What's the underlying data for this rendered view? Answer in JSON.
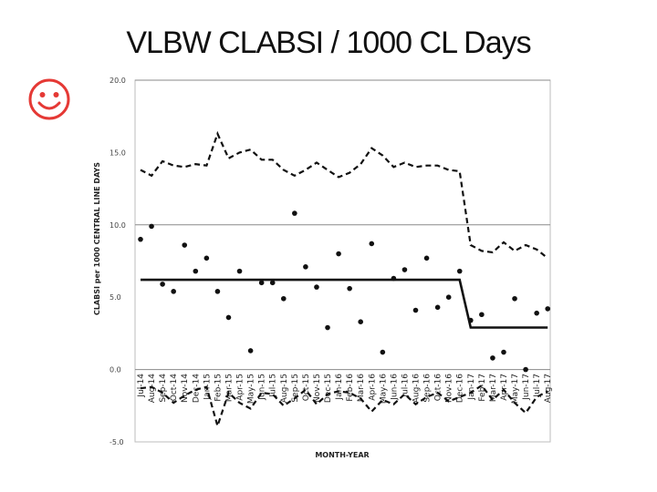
{
  "slide": {
    "title": "VLBW CLABSI / 1000 CL Days",
    "icon": "smiley-face-icon",
    "icon_color": "#e53935"
  },
  "chart_data": {
    "type": "line",
    "ylabel": "CLABSI per 1000 CENTRAL LINE DAYS",
    "xlabel": "MONTH-YEAR",
    "ylim": [
      -5,
      20
    ],
    "yticks": [
      "-5.0",
      "0.0",
      "5.0",
      "10.0",
      "15.0",
      "20.0"
    ],
    "grid": "horizontal at 0, 10 and 20",
    "categories": [
      "Jul-14",
      "Aug-14",
      "Sep-14",
      "Oct-14",
      "Nov-14",
      "Dec-14",
      "Jan-15",
      "Feb-15",
      "Mar-15",
      "Apr-15",
      "May-15",
      "Jun-15",
      "Jul-15",
      "Aug-15",
      "Sep-15",
      "Oct-15",
      "Nov-15",
      "Dec-15",
      "Jan-16",
      "Feb-16",
      "Mar-16",
      "Apr-16",
      "May-16",
      "Jun-16",
      "Jul-16",
      "Aug-16",
      "Sep-16",
      "Oct-16",
      "Nov-16",
      "Dec-16",
      "Jan-17",
      "Feb-17",
      "Mar-17",
      "Apr-17",
      "May-17",
      "Jun-17",
      "Jul-17",
      "Aug-17"
    ],
    "series": [
      {
        "style": "markers",
        "color": "#111111",
        "values": [
          9.0,
          9.9,
          5.9,
          5.4,
          8.6,
          6.8,
          7.7,
          5.4,
          3.6,
          6.8,
          1.3,
          6.0,
          6.0,
          4.9,
          10.8,
          7.1,
          5.7,
          2.9,
          8.0,
          5.6,
          3.3,
          8.7,
          1.2,
          6.3,
          6.9,
          4.1,
          7.7,
          4.3,
          5.0,
          6.8,
          3.4,
          3.8,
          0.8,
          1.2,
          4.9,
          0.0,
          3.9,
          4.2
        ]
      },
      {
        "style": "solid",
        "color": "#111111",
        "values": [
          6.2,
          6.2,
          6.2,
          6.2,
          6.2,
          6.2,
          6.2,
          6.2,
          6.2,
          6.2,
          6.2,
          6.2,
          6.2,
          6.2,
          6.2,
          6.2,
          6.2,
          6.2,
          6.2,
          6.2,
          6.2,
          6.2,
          6.2,
          6.2,
          6.2,
          6.2,
          6.2,
          6.2,
          6.2,
          6.2,
          2.9,
          2.9,
          2.9,
          2.9,
          2.9,
          2.9,
          2.9,
          2.9
        ]
      },
      {
        "style": "dashed",
        "color": "#111111",
        "values": [
          13.8,
          13.4,
          14.4,
          14.1,
          14.0,
          14.2,
          14.1,
          16.3,
          14.6,
          15.0,
          15.2,
          14.5,
          14.5,
          13.8,
          13.4,
          13.8,
          14.3,
          13.8,
          13.3,
          13.6,
          14.2,
          15.3,
          14.8,
          14.0,
          14.3,
          14.0,
          14.1,
          14.1,
          13.8,
          13.7,
          8.6,
          8.2,
          8.1,
          8.8,
          8.2,
          8.6,
          8.3,
          7.7
        ]
      },
      {
        "style": "dashed",
        "color": "#111111",
        "values": [
          -1.3,
          -1.2,
          -1.6,
          -2.3,
          -1.8,
          -1.4,
          -1.2,
          -3.9,
          -1.6,
          -2.3,
          -2.7,
          -1.6,
          -1.7,
          -2.5,
          -2.0,
          -1.4,
          -2.4,
          -1.7,
          -1.5,
          -1.6,
          -2.0,
          -2.9,
          -2.1,
          -2.4,
          -1.7,
          -2.4,
          -1.9,
          -1.6,
          -2.2,
          -1.9,
          -1.6,
          -1.1,
          -2.1,
          -1.4,
          -2.3,
          -3.0,
          -1.9,
          -1.5
        ]
      }
    ]
  }
}
